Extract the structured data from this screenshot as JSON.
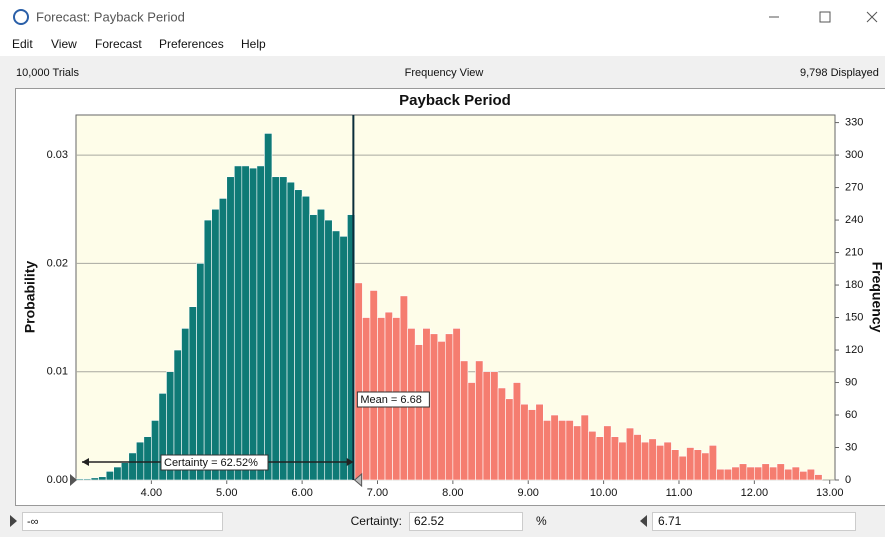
{
  "window": {
    "title": "Forecast: Payback Period",
    "menu": [
      "Edit",
      "View",
      "Forecast",
      "Preferences",
      "Help"
    ]
  },
  "info": {
    "trials": "10,000 Trials",
    "view": "Frequency View",
    "displayed": "9,798 Displayed"
  },
  "chart_data": {
    "type": "histogram",
    "title": "Payback Period",
    "y_label": "Probability",
    "y2_label": "Frequency",
    "bins": [
      3,
      3.1,
      3.2,
      3.3,
      3.4,
      3.5,
      3.6,
      3.7,
      3.8,
      3.9,
      4,
      4.1,
      4.2,
      4.3,
      4.4,
      4.5,
      4.6,
      4.7,
      4.8,
      4.9,
      5,
      5.1,
      5.2,
      5.3,
      5.4,
      5.5,
      5.6,
      5.7,
      5.8,
      5.9,
      6,
      6.1,
      6.2,
      6.3,
      6.4,
      6.5,
      6.6,
      6.7,
      6.8,
      6.9,
      7,
      7.1,
      7.2,
      7.3,
      7.4,
      7.5,
      7.6,
      7.7,
      7.8,
      7.9,
      8,
      8.1,
      8.2,
      8.3,
      8.4,
      8.5,
      8.6,
      8.7,
      8.8,
      8.9,
      9,
      9.1,
      9.2,
      9.3,
      9.4,
      9.5,
      9.6,
      9.7,
      9.8,
      9.9,
      10,
      10.1,
      10.2,
      10.3,
      10.4,
      10.5,
      10.6,
      10.7,
      10.8,
      10.9,
      11,
      11.1,
      11.2,
      11.3,
      11.4,
      11.5,
      11.6,
      11.7,
      11.8,
      11.9,
      12,
      12.1,
      12.2,
      12.3,
      12.4,
      12.5,
      12.6,
      12.7,
      12.8,
      12.9
    ],
    "series": [
      {
        "axis": "y2",
        "colors": [
          "#0f7a76",
          "#f57d70"
        ],
        "values": [
          1,
          1,
          2,
          3,
          8,
          12,
          16,
          25,
          35,
          40,
          55,
          80,
          100,
          120,
          140,
          160,
          200,
          240,
          250,
          260,
          280,
          290,
          290,
          288,
          290,
          320,
          280,
          280,
          275,
          268,
          262,
          245,
          250,
          240,
          230,
          225,
          245,
          182,
          150,
          175,
          150,
          155,
          150,
          170,
          140,
          125,
          140,
          135,
          128,
          135,
          140,
          110,
          90,
          110,
          100,
          100,
          85,
          75,
          90,
          70,
          65,
          70,
          55,
          60,
          55,
          55,
          50,
          60,
          45,
          40,
          50,
          40,
          35,
          48,
          42,
          35,
          38,
          32,
          35,
          28,
          22,
          30,
          28,
          25,
          32,
          10,
          10,
          12,
          15,
          12,
          12,
          15,
          12,
          15,
          10,
          12,
          8,
          10,
          5
        ]
      }
    ],
    "xlim": [
      3,
      13.07
    ],
    "xticks": [
      {
        "value": 4,
        "label": "4.00"
      },
      {
        "value": 5,
        "label": "5.00"
      },
      {
        "value": 6,
        "label": "6.00"
      },
      {
        "value": 7,
        "label": "7.00"
      },
      {
        "value": 8,
        "label": "8.00"
      },
      {
        "value": 9,
        "label": "9.00"
      },
      {
        "value": 10,
        "label": "10.00"
      },
      {
        "value": 11,
        "label": "11.00"
      },
      {
        "value": 12,
        "label": "12.00"
      },
      {
        "value": 13,
        "label": "13.00"
      }
    ],
    "ylim": [
      0,
      0.0337
    ],
    "yticks": [
      {
        "value": 0,
        "label": "0.00"
      },
      0.01,
      0.02,
      0.03
    ],
    "y2lim": [
      0,
      337
    ],
    "y2ticks": [
      0,
      30,
      60,
      90,
      120,
      150,
      180,
      210,
      240,
      270,
      300,
      330
    ],
    "grid": true,
    "background": "#fefde9",
    "annotations": [
      {
        "value": 6.68,
        "label": "Mean = 6.68"
      },
      {
        "value": 62.52,
        "label": "Certainty = 62.52%"
      }
    ]
  },
  "footer": {
    "lower": "-∞",
    "certainty_label": "Certainty:",
    "certainty": 62.52,
    "unit": "%",
    "upper": 6.71
  }
}
